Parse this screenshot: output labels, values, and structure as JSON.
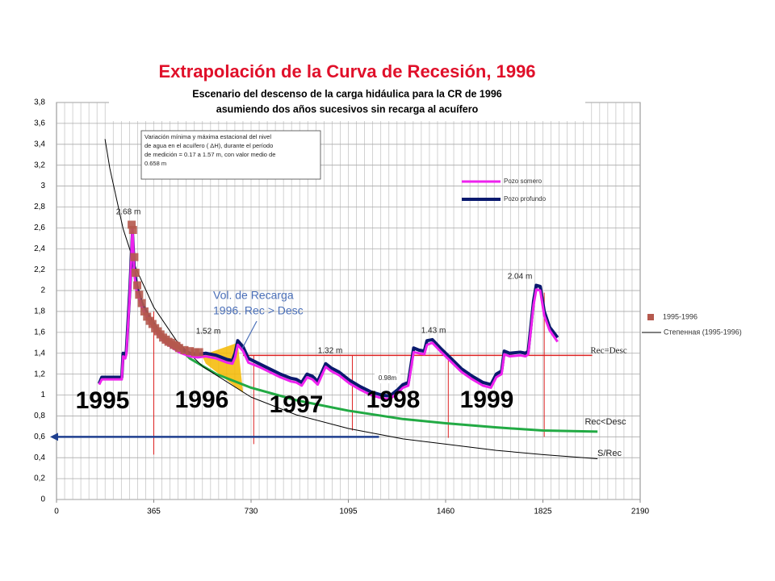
{
  "chart_data": {
    "type": "line",
    "title": "Extrapolación de la Curva de Recesión, 1996",
    "subtitle": [
      "Escenario del descenso de la carga hidáulica para la CR de 1996",
      "asumiendo dos años sucesivos sin recarga al acuífero"
    ],
    "xlim": [
      0,
      2190
    ],
    "xticks": [
      0,
      365,
      730,
      1095,
      1460,
      1825,
      2190
    ],
    "ylim": [
      0,
      3.8
    ],
    "yticks": [
      0,
      {
        "value": 0.2,
        "label": "0,2"
      },
      {
        "value": 0.4,
        "label": "0,4"
      },
      {
        "value": 0.6,
        "label": "0,6"
      },
      {
        "value": 0.8,
        "label": "0,8"
      },
      1,
      {
        "value": 1.2,
        "label": "1,2"
      },
      {
        "value": 1.4,
        "label": "1,4"
      },
      {
        "value": 1.6,
        "label": "1,6"
      },
      {
        "value": 1.8,
        "label": "1,8"
      },
      2,
      {
        "value": 2.2,
        "label": "2,2"
      },
      {
        "value": 2.4,
        "label": "2,4"
      },
      {
        "value": 2.6,
        "label": "2,6"
      },
      {
        "value": 2.8,
        "label": "2,8"
      },
      3,
      {
        "value": 3.2,
        "label": "3,2"
      },
      {
        "value": 3.4,
        "label": "3,4"
      },
      {
        "value": 3.6,
        "label": "3,6"
      },
      {
        "value": 3.8,
        "label": "3,8"
      }
    ],
    "grid": true,
    "series": [
      {
        "name": "Pozo profundo",
        "color": "#0a1a6e",
        "width": 4,
        "kind": "line",
        "x": [
          160,
          170,
          200,
          245,
          250,
          258,
          262,
          275,
          285,
          292,
          300,
          320,
          340,
          360,
          380,
          400,
          430,
          460,
          500,
          530,
          560,
          600,
          640,
          660,
          670,
          680,
          700,
          720,
          760,
          800,
          840,
          880,
          900,
          920,
          940,
          960,
          980,
          1010,
          1030,
          1060,
          1100,
          1140,
          1180,
          1220,
          1250,
          1280,
          1300,
          1320,
          1340,
          1360,
          1380,
          1390,
          1410,
          1440,
          1480,
          1520,
          1560,
          1600,
          1630,
          1650,
          1670,
          1680,
          1700,
          1740,
          1760,
          1770,
          1790,
          1800,
          1815,
          1830,
          1850,
          1880
        ],
        "values": [
          1.11,
          1.17,
          1.17,
          1.17,
          1.4,
          1.38,
          1.42,
          2.0,
          2.55,
          2.2,
          2.05,
          1.88,
          1.78,
          1.7,
          1.62,
          1.56,
          1.5,
          1.45,
          1.4,
          1.39,
          1.4,
          1.38,
          1.34,
          1.33,
          1.4,
          1.52,
          1.46,
          1.35,
          1.3,
          1.25,
          1.2,
          1.16,
          1.15,
          1.12,
          1.2,
          1.18,
          1.13,
          1.3,
          1.26,
          1.22,
          1.14,
          1.08,
          1.03,
          1.0,
          0.99,
          1.05,
          1.1,
          1.12,
          1.45,
          1.43,
          1.42,
          1.52,
          1.53,
          1.45,
          1.35,
          1.25,
          1.18,
          1.12,
          1.1,
          1.2,
          1.23,
          1.42,
          1.4,
          1.41,
          1.4,
          1.42,
          1.9,
          2.05,
          2.04,
          1.8,
          1.65,
          1.55
        ]
      },
      {
        "name": "Pozo somero",
        "color": "#ee22ee",
        "width": 3,
        "kind": "line",
        "x": [
          160,
          170,
          200,
          245,
          250,
          258,
          262,
          275,
          285,
          292,
          300,
          320,
          340,
          360,
          380,
          400,
          430,
          460,
          500,
          530,
          560,
          600,
          640,
          660,
          670,
          680,
          700,
          720,
          760,
          800,
          840,
          880,
          900,
          920,
          940,
          960,
          980,
          1010,
          1030,
          1060,
          1100,
          1140,
          1180,
          1220,
          1250,
          1280,
          1300,
          1320,
          1340,
          1360,
          1380,
          1390,
          1410,
          1440,
          1480,
          1520,
          1560,
          1600,
          1630,
          1650,
          1670,
          1680,
          1700,
          1740,
          1760,
          1770,
          1790,
          1800,
          1815,
          1830,
          1850,
          1880
        ],
        "values": [
          1.1,
          1.15,
          1.15,
          1.15,
          1.37,
          1.35,
          1.39,
          1.96,
          2.6,
          2.15,
          2.0,
          1.84,
          1.74,
          1.66,
          1.58,
          1.52,
          1.46,
          1.41,
          1.37,
          1.36,
          1.37,
          1.35,
          1.31,
          1.3,
          1.36,
          1.48,
          1.42,
          1.31,
          1.27,
          1.22,
          1.17,
          1.13,
          1.12,
          1.09,
          1.17,
          1.15,
          1.1,
          1.27,
          1.23,
          1.19,
          1.11,
          1.05,
          1.0,
          0.97,
          0.96,
          1.02,
          1.07,
          1.09,
          1.41,
          1.4,
          1.39,
          1.48,
          1.5,
          1.42,
          1.32,
          1.22,
          1.15,
          1.09,
          1.07,
          1.17,
          1.2,
          1.39,
          1.37,
          1.38,
          1.37,
          1.39,
          1.86,
          2.01,
          2.0,
          1.76,
          1.62,
          1.51
        ]
      },
      {
        "name": "1995-1996",
        "color": "#b5594e",
        "kind": "scatter",
        "x": [
          282,
          287,
          292,
          296,
          303,
          310,
          320,
          330,
          340,
          350,
          360,
          370,
          380,
          390,
          400,
          410,
          420,
          430,
          440,
          450,
          460,
          480,
          500,
          520,
          535
        ],
        "values": [
          2.63,
          2.58,
          2.32,
          2.17,
          2.05,
          1.96,
          1.88,
          1.8,
          1.75,
          1.71,
          1.68,
          1.64,
          1.61,
          1.58,
          1.55,
          1.53,
          1.51,
          1.5,
          1.48,
          1.47,
          1.45,
          1.43,
          1.42,
          1.41,
          1.41
        ]
      },
      {
        "name": "Степенная (1995-1996)",
        "color": "#000000",
        "width": 1,
        "kind": "line",
        "x": [
          182,
          200,
          250,
          300,
          365,
          450,
          550,
          730,
          900,
          1095,
          1300,
          1460,
          1650,
          1825,
          2030
        ],
        "values": [
          3.45,
          3.17,
          2.59,
          2.2,
          1.84,
          1.52,
          1.27,
          0.98,
          0.81,
          0.68,
          0.58,
          0.53,
          0.47,
          0.43,
          0.39
        ]
      },
      {
        "name": "Rec<Desc",
        "color": "#22aa44",
        "width": 3,
        "kind": "line",
        "x": [
          440,
          500,
          600,
          730,
          900,
          1095,
          1300,
          1460,
          1650,
          1825,
          2030
        ],
        "values": [
          1.5,
          1.35,
          1.2,
          1.07,
          0.95,
          0.85,
          0.77,
          0.73,
          0.69,
          0.66,
          0.65
        ]
      },
      {
        "name": "Rec=Desc",
        "color": "#dd2222",
        "width": 1.5,
        "kind": "line",
        "x": [
          700,
          2010
        ],
        "values": [
          1.38,
          1.38
        ]
      }
    ],
    "legend": [
      "Pozo somero",
      "Pozo profundo",
      "1995-1996",
      "Степенная (1995-1996)"
    ],
    "vertical_lines": {
      "color": "#dd2222",
      "x": [
        365,
        740,
        1110,
        1470,
        1830
      ],
      "y_low": [
        0.43,
        0.53,
        0.66,
        0.59,
        0.6
      ],
      "y_high": [
        1.8,
        1.38,
        1.38,
        1.38,
        1.98
      ]
    },
    "arrow": {
      "color": "#1f3f8f",
      "y": 0.6,
      "x": [
        0,
        1210
      ]
    },
    "recharge_area": {
      "color": "#f5b800",
      "x": [
        545,
        680,
        700,
        560
      ],
      "y": [
        1.38,
        1.5,
        1.02,
        1.3
      ]
    },
    "note": [
      "Variación mínima y máxima estacional del nivel",
      "de agua en el acuífero ( ΔH), durante el período",
      "de medición =  0.17 a 1.57 m, con valor medio de",
      "0.658 m"
    ],
    "year_labels": [
      "1995",
      "1996",
      "1997",
      "1998",
      "1999"
    ],
    "value_labels": [
      "2.68 m",
      "1.52 m",
      "1.32 m",
      "1.43 m",
      "2.04 m",
      "0.98m"
    ],
    "recharge_label": [
      "Vol. de Recarga",
      "1996. Rec > Desc"
    ],
    "curve_labels": [
      "Rec=Desc",
      "Rec<Desc",
      "S/Rec"
    ]
  }
}
